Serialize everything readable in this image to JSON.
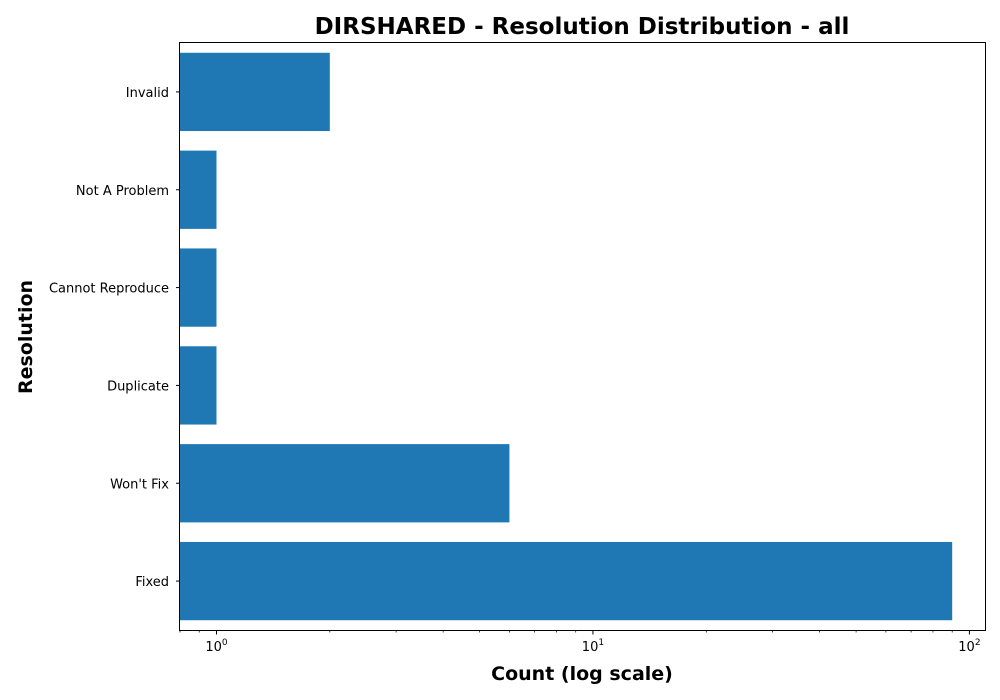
{
  "chart_data": {
    "type": "bar",
    "orientation": "horizontal",
    "title": "DIRSHARED - Resolution Distribution - all",
    "xlabel": "Count (log scale)",
    "ylabel": "Resolution",
    "x_scale": "log",
    "xlim": [
      0.8,
      110
    ],
    "x_ticks": [
      {
        "value": 1,
        "base": "10",
        "exp": "0"
      },
      {
        "value": 10,
        "base": "10",
        "exp": "1"
      },
      {
        "value": 100,
        "base": "10",
        "exp": "2"
      }
    ],
    "categories": [
      "Fixed",
      "Won't Fix",
      "Duplicate",
      "Cannot Reproduce",
      "Not A Problem",
      "Invalid"
    ],
    "values": [
      90,
      6,
      1,
      1,
      1,
      2
    ],
    "grid": false,
    "bar_color": "#1f77b4"
  }
}
